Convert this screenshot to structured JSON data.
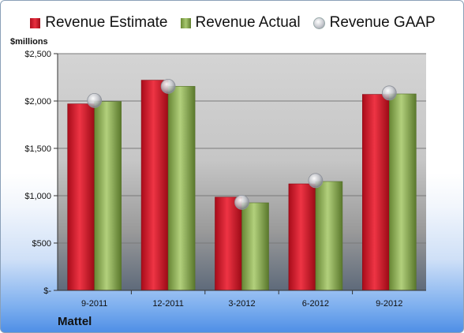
{
  "legend": {
    "estimate": "Revenue Estimate",
    "actual": "Revenue Actual",
    "gaap": "Revenue GAAP"
  },
  "unit_label": "$millions",
  "company": "Mattel",
  "colors": {
    "estimate": "#d41c2c",
    "actual": "#8fb05a",
    "gaap": "#c8cad0",
    "plot_background": "#d0d0d0"
  },
  "chart_data": {
    "type": "bar",
    "categories": [
      "9-2011",
      "12-2011",
      "3-2012",
      "6-2012",
      "9-2012"
    ],
    "series": [
      {
        "name": "Revenue Estimate",
        "values": [
          1970,
          2220,
          985,
          1125,
          2070
        ]
      },
      {
        "name": "Revenue Actual",
        "values": [
          1995,
          2155,
          925,
          1150,
          2075
        ]
      },
      {
        "name": "Revenue GAAP",
        "values": [
          2005,
          2155,
          930,
          1160,
          2085
        ]
      }
    ],
    "ylim": [
      0,
      2500
    ],
    "yticks": [
      {
        "value": 0,
        "label": "$-"
      },
      {
        "value": 500,
        "label": "$500"
      },
      {
        "value": 1000,
        "label": "$1,000"
      },
      {
        "value": 1500,
        "label": "$1,500"
      },
      {
        "value": 2000,
        "label": "$2,000"
      },
      {
        "value": 2500,
        "label": "$2,500"
      }
    ],
    "ylabel": "$millions",
    "grid": true,
    "legend_position": "top"
  }
}
